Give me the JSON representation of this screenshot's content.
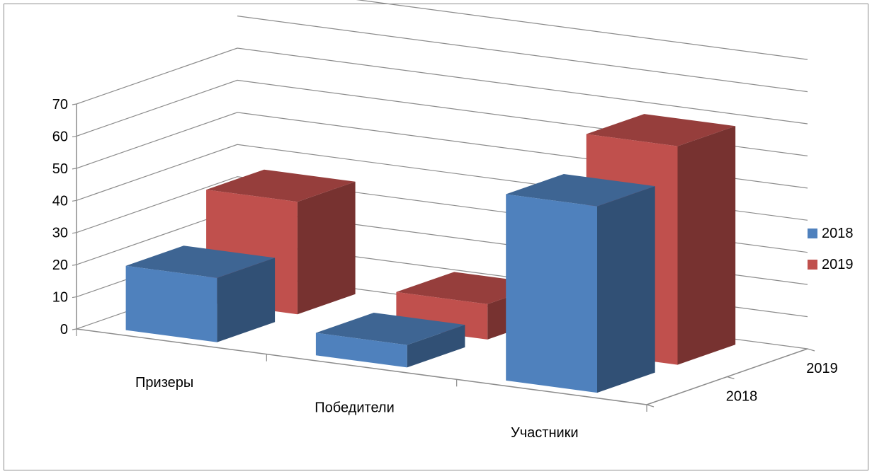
{
  "chart_data": {
    "type": "bar",
    "title": "",
    "categories": [
      "Призеры",
      "Победители",
      "Участники"
    ],
    "series": [
      {
        "name": "2018",
        "values": [
          20,
          7,
          58
        ],
        "color": "#4F81BD"
      },
      {
        "name": "2019",
        "values": [
          35,
          11,
          68
        ],
        "color": "#C0504D"
      }
    ],
    "depth_labels": [
      "2018",
      "2019"
    ],
    "y_ticks": [
      "0",
      "10",
      "20",
      "30",
      "40",
      "50",
      "60",
      "70"
    ],
    "ylim": [
      0,
      70
    ],
    "grid": true,
    "legend_position": "right"
  }
}
